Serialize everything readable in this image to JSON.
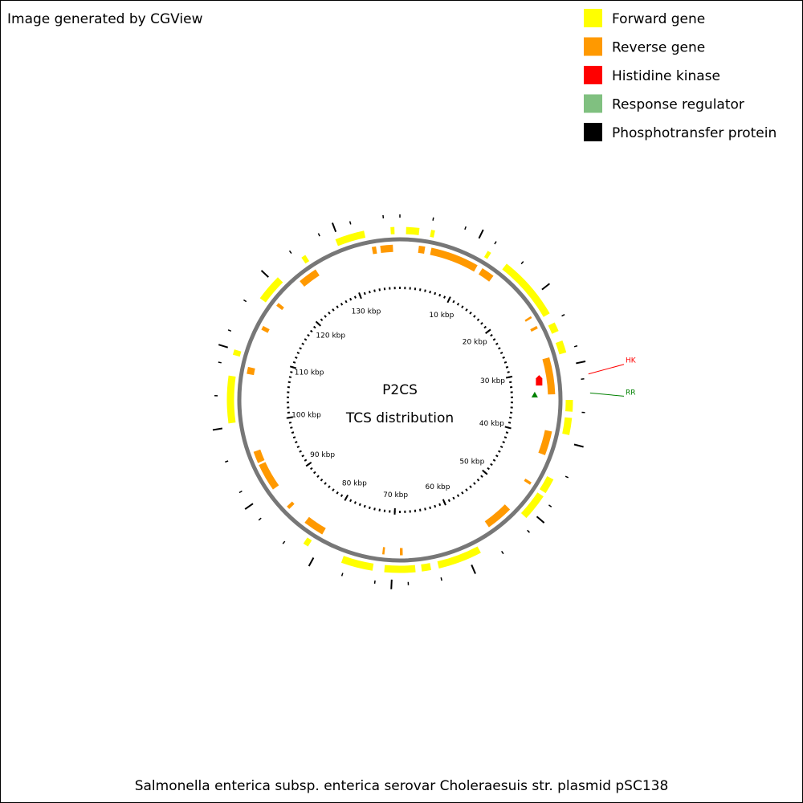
{
  "header": {
    "title": "Image generated by CGView"
  },
  "legend": [
    {
      "label": "Forward gene",
      "color": "#ffff00"
    },
    {
      "label": "Reverse gene",
      "color": "#ff9900"
    },
    {
      "label": "Histidine kinase",
      "color": "#ff0000"
    },
    {
      "label": "Response regulator",
      "color": "#80c080"
    },
    {
      "label": "Phosphotransfer protein",
      "color": "#000000"
    }
  ],
  "map": {
    "title": "P2CS",
    "subtitle": "TCS distribution",
    "range": [
      0,
      138
    ],
    "ticks": [
      {
        "value": 10,
        "label": "10 kbp"
      },
      {
        "value": 20,
        "label": "20 kbp"
      },
      {
        "value": 30,
        "label": "30 kbp"
      },
      {
        "value": 40,
        "label": "40 kbp"
      },
      {
        "value": 50,
        "label": "50 kbp"
      },
      {
        "value": 60,
        "label": "60 kbp"
      },
      {
        "value": 70,
        "label": "70 kbp"
      },
      {
        "value": 80,
        "label": "80 kbp"
      },
      {
        "value": 90,
        "label": "90 kbp"
      },
      {
        "value": 100,
        "label": "100 kbp"
      },
      {
        "value": 110,
        "label": "110 kbp"
      },
      {
        "value": 120,
        "label": "120 kbp"
      },
      {
        "value": 130,
        "label": "130 kbp"
      }
    ],
    "forward_genes": [
      [
        129.6,
        133.4
      ],
      [
        136.8,
        137.3
      ],
      [
        0.8,
        2.5
      ],
      [
        4.0,
        4.5
      ],
      [
        11.7,
        12.2
      ],
      [
        14.6,
        23.0
      ],
      [
        24.3,
        25.5
      ],
      [
        26.8,
        28.4
      ],
      [
        34.5,
        36.0
      ],
      [
        36.8,
        39.0
      ],
      [
        45.0,
        47.0
      ],
      [
        47.5,
        51.0
      ],
      [
        58.3,
        64.0
      ],
      [
        65.0,
        66.2
      ],
      [
        67.0,
        71.0
      ],
      [
        72.5,
        76.6
      ],
      [
        81.3,
        82.0
      ],
      [
        100.5,
        106.6
      ],
      [
        109.3,
        110.0
      ],
      [
        117.3,
        120.8
      ],
      [
        124.7,
        125.3
      ]
    ],
    "reverse_genes": [
      [
        134.0,
        134.6
      ],
      [
        135.2,
        137.0
      ],
      [
        2.7,
        3.6
      ],
      [
        4.5,
        11.5
      ],
      [
        12.3,
        14.2
      ],
      [
        22.0,
        22.3
      ],
      [
        23.6,
        24.0
      ],
      [
        28.4,
        33.7
      ],
      [
        39.0,
        42.5
      ],
      [
        46.8,
        47.2
      ],
      [
        51.7,
        55.6
      ],
      [
        68.6,
        69.0
      ],
      [
        71.2,
        71.5
      ],
      [
        80.5,
        83.5
      ],
      [
        86.4,
        86.9
      ],
      [
        90.0,
        94.0
      ],
      [
        94.3,
        96.0
      ],
      [
        107.2,
        108.2
      ],
      [
        113.8,
        114.4
      ],
      [
        117.8,
        118.3
      ],
      [
        122.6,
        125.4
      ]
    ],
    "features": [
      {
        "label": "HK",
        "position": 31.5,
        "color": "#ff0000"
      },
      {
        "label": "RR",
        "position": 33.7,
        "color": "#008000"
      }
    ]
  },
  "footer": {
    "caption": "Salmonella enterica subsp. enterica serovar Choleraesuis str. plasmid pSC138"
  }
}
